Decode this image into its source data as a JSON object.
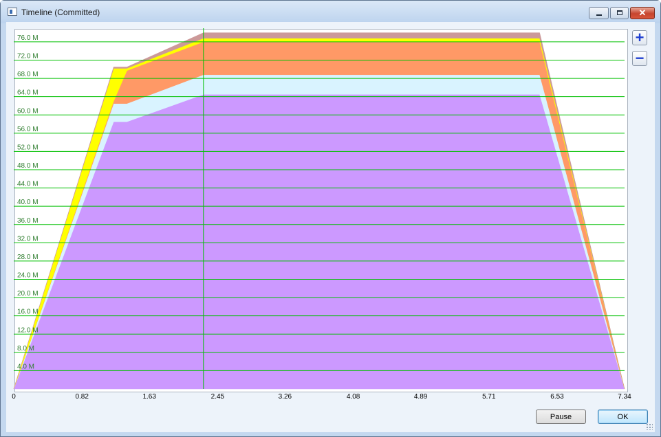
{
  "window": {
    "title": "Timeline (Committed)",
    "close_glyph": "✕"
  },
  "zoom": {
    "in_glyph": "+",
    "out_glyph": "−"
  },
  "buttons": {
    "pause_label": "Pause",
    "ok_label": "OK"
  },
  "chart_data": {
    "type": "area",
    "stacked": true,
    "x_ticks": [
      0,
      0.82,
      1.63,
      2.45,
      3.26,
      4.08,
      4.89,
      5.71,
      6.53,
      7.34
    ],
    "x_tick_labels": [
      "0",
      "0.82",
      "1.63",
      "2.45",
      "3.26",
      "4.08",
      "4.89",
      "5.71",
      "6.53",
      "7.34"
    ],
    "y_ticks": [
      4,
      8,
      12,
      16,
      20,
      24,
      28,
      32,
      36,
      40,
      44,
      48,
      52,
      56,
      60,
      64,
      68,
      72,
      76
    ],
    "y_tick_labels": [
      "4.0 M",
      "8.0 M",
      "12.0 M",
      "16.0 M",
      "20.0 M",
      "24.0 M",
      "28.0 M",
      "32.0 M",
      "36.0 M",
      "40.0 M",
      "44.0 M",
      "48.0 M",
      "52.0 M",
      "56.0 M",
      "60.0 M",
      "64.0 M",
      "68.0 M",
      "72.0 M",
      "76.0 M"
    ],
    "xlim": [
      0,
      7.34
    ],
    "ylim": [
      0,
      79
    ],
    "grid": {
      "horizontal": true,
      "vertical": false,
      "color": "#00c000"
    },
    "cursor_x": 2.28,
    "x": [
      0,
      1.2,
      1.36,
      2.28,
      6.32,
      7.34
    ],
    "series": [
      {
        "color": "#cc99ff",
        "values": [
          0,
          58.5,
          58.5,
          64.5,
          64.5,
          0
        ]
      },
      {
        "color": "#d9f3ff",
        "values": [
          0,
          4.0,
          4.0,
          4.3,
          4.3,
          0
        ]
      },
      {
        "color": "#ff9966",
        "values": [
          0,
          0.5,
          7.2,
          7.2,
          7.2,
          0
        ]
      },
      {
        "color": "#ffff00",
        "values": [
          0,
          7.2,
          0.5,
          0.8,
          0.8,
          0
        ]
      },
      {
        "color": "#cc9999",
        "values": [
          0,
          0.3,
          0.3,
          1.2,
          1.2,
          0
        ]
      }
    ]
  }
}
